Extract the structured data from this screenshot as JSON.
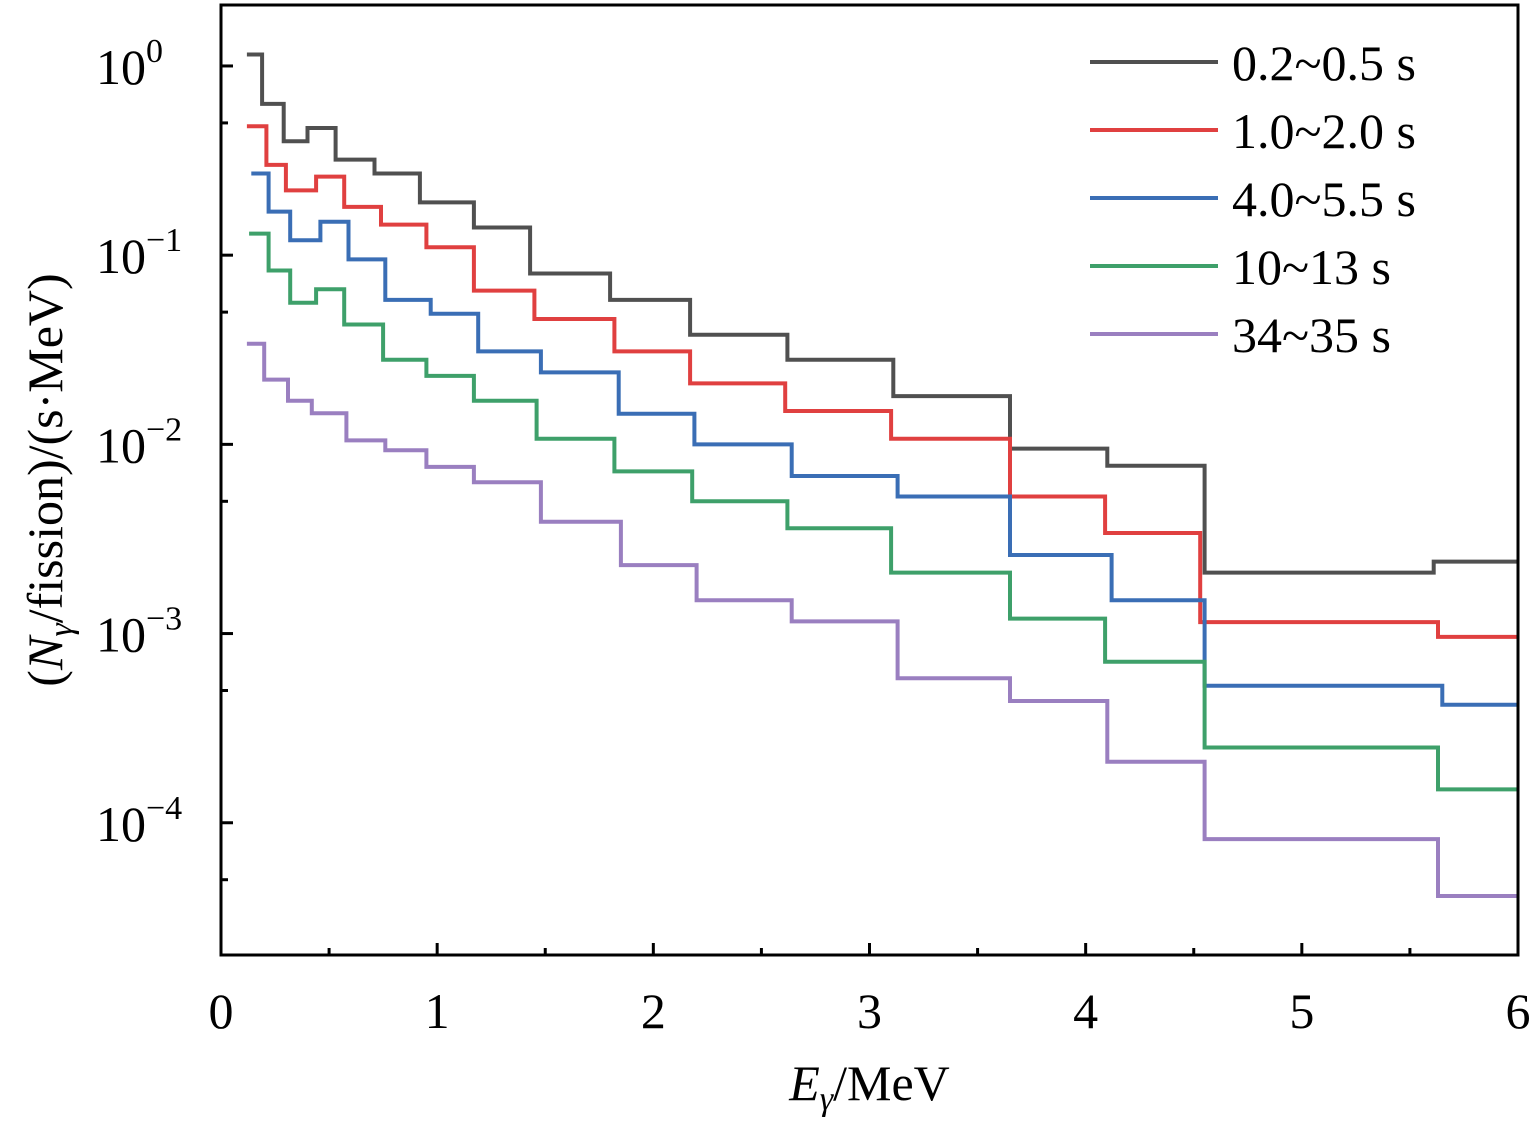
{
  "chart_data": {
    "type": "line",
    "style": "step",
    "xlabel": {
      "main": "E",
      "sub": "γ",
      "unit": "/MeV"
    },
    "ylabel": {
      "open": "(",
      "main": "N",
      "sub": "γ",
      "rest": "/fission)/(s·MeV)"
    },
    "xlim": [
      0,
      6
    ],
    "ylim": [
      2e-05,
      2.1
    ],
    "yscale": "log",
    "x_ticks": [
      {
        "value": 0,
        "label": "0"
      },
      {
        "value": 1,
        "label": "1"
      },
      {
        "value": 2,
        "label": "2"
      },
      {
        "value": 3,
        "label": "3"
      },
      {
        "value": 4,
        "label": "4"
      },
      {
        "value": 5,
        "label": "5"
      },
      {
        "value": 6,
        "label": "6"
      }
    ],
    "y_ticks": [
      {
        "value": 1,
        "base": "10",
        "exp": "0"
      },
      {
        "value": 0.1,
        "base": "10",
        "exp": "−1"
      },
      {
        "value": 0.01,
        "base": "10",
        "exp": "−2"
      },
      {
        "value": 0.001,
        "base": "10",
        "exp": "−3"
      },
      {
        "value": 0.0001,
        "base": "10",
        "exp": "−4"
      }
    ],
    "grid": false,
    "legend_position": "top-right",
    "series": [
      {
        "name": "0.2~0.5 s",
        "color": "#505050",
        "edges": [
          0.12,
          0.19,
          0.29,
          0.4,
          0.53,
          0.71,
          0.92,
          1.17,
          1.43,
          1.8,
          2.17,
          2.62,
          3.11,
          3.65,
          4.1,
          4.55,
          5.61,
          6.0
        ],
        "values": [
          1.15,
          0.63,
          0.4,
          0.47,
          0.32,
          0.27,
          0.19,
          0.14,
          0.08,
          0.058,
          0.038,
          0.028,
          0.018,
          0.0095,
          0.0077,
          0.0021,
          0.0024
        ]
      },
      {
        "name": "1.0~2.0 s",
        "color": "#e04040",
        "edges": [
          0.12,
          0.21,
          0.3,
          0.44,
          0.57,
          0.74,
          0.95,
          1.17,
          1.45,
          1.82,
          2.17,
          2.61,
          3.1,
          3.65,
          4.09,
          4.53,
          5.63,
          6.0
        ],
        "values": [
          0.48,
          0.3,
          0.22,
          0.26,
          0.18,
          0.145,
          0.11,
          0.065,
          0.046,
          0.031,
          0.021,
          0.015,
          0.0107,
          0.0053,
          0.0034,
          0.00115,
          0.00096
        ]
      },
      {
        "name": "4.0~5.5 s",
        "color": "#3a6eb5",
        "edges": [
          0.14,
          0.22,
          0.32,
          0.46,
          0.59,
          0.76,
          0.97,
          1.19,
          1.48,
          1.84,
          2.19,
          2.64,
          3.13,
          3.65,
          4.12,
          4.55,
          5.65,
          6.0
        ],
        "values": [
          0.27,
          0.17,
          0.12,
          0.15,
          0.095,
          0.058,
          0.049,
          0.031,
          0.024,
          0.0145,
          0.01,
          0.0068,
          0.0053,
          0.0026,
          0.0015,
          0.00053,
          0.00042
        ]
      },
      {
        "name": "10~13 s",
        "color": "#3ea06a",
        "edges": [
          0.13,
          0.22,
          0.32,
          0.44,
          0.57,
          0.75,
          0.95,
          1.17,
          1.46,
          1.82,
          2.18,
          2.62,
          3.1,
          3.65,
          4.09,
          4.55,
          5.63,
          6.0
        ],
        "values": [
          0.13,
          0.083,
          0.056,
          0.066,
          0.043,
          0.028,
          0.023,
          0.017,
          0.0107,
          0.0072,
          0.005,
          0.0036,
          0.0021,
          0.0012,
          0.00071,
          0.00025,
          0.00015
        ]
      },
      {
        "name": "34~35 s",
        "color": "#9a7fc0",
        "edges": [
          0.12,
          0.2,
          0.31,
          0.42,
          0.58,
          0.76,
          0.95,
          1.17,
          1.48,
          1.85,
          2.2,
          2.64,
          3.13,
          3.65,
          4.1,
          4.55,
          5.63,
          6.0
        ],
        "values": [
          0.034,
          0.022,
          0.017,
          0.0146,
          0.0105,
          0.0093,
          0.0076,
          0.0063,
          0.0039,
          0.0023,
          0.0015,
          0.00116,
          0.00058,
          0.00044,
          0.00021,
          8.2e-05,
          4.1e-05
        ]
      }
    ]
  }
}
